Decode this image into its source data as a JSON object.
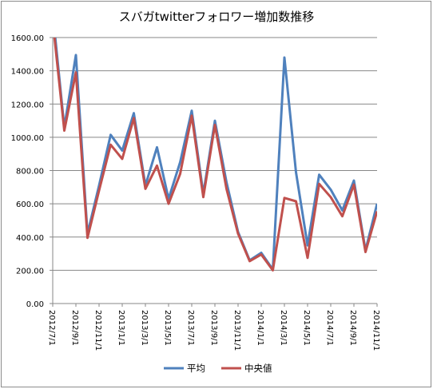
{
  "chart_data": {
    "type": "line",
    "title": "スバガtwitterフォロワー増加数推移",
    "xlabel": "",
    "ylabel": "",
    "ylim": [
      0,
      1600
    ],
    "yticks": [
      "0.00",
      "200.00",
      "400.00",
      "600.00",
      "800.00",
      "1000.00",
      "1200.00",
      "1400.00",
      "1600.00"
    ],
    "x_tick_labels": [
      "2012/7/1",
      "2012/9/1",
      "2012/11/1",
      "2013/1/1",
      "2013/3/1",
      "2013/5/1",
      "2013/7/1",
      "2013/9/1",
      "2013/11/1",
      "2014/1/1",
      "2014/3/1",
      "2014/5/1",
      "2014/7/1",
      "2014/9/1",
      "2014/11/1"
    ],
    "grid": "horizontal",
    "legend_position": "bottom",
    "series": [
      {
        "name": "平均",
        "color": "#4f81bd",
        "values": [
          1750,
          1060,
          1495,
          420,
          710,
          1015,
          920,
          1145,
          710,
          940,
          630,
          850,
          1160,
          660,
          1100,
          730,
          430,
          260,
          305,
          205,
          1480,
          790,
          350,
          775,
          685,
          560,
          740,
          320,
          600
        ]
      },
      {
        "name": "中央値",
        "color": "#c0504d",
        "values": [
          1700,
          1040,
          1390,
          395,
          680,
          955,
          870,
          1115,
          690,
          830,
          600,
          780,
          1130,
          640,
          1075,
          690,
          420,
          255,
          295,
          200,
          635,
          615,
          275,
          720,
          640,
          525,
          715,
          310,
          555
        ]
      }
    ]
  }
}
